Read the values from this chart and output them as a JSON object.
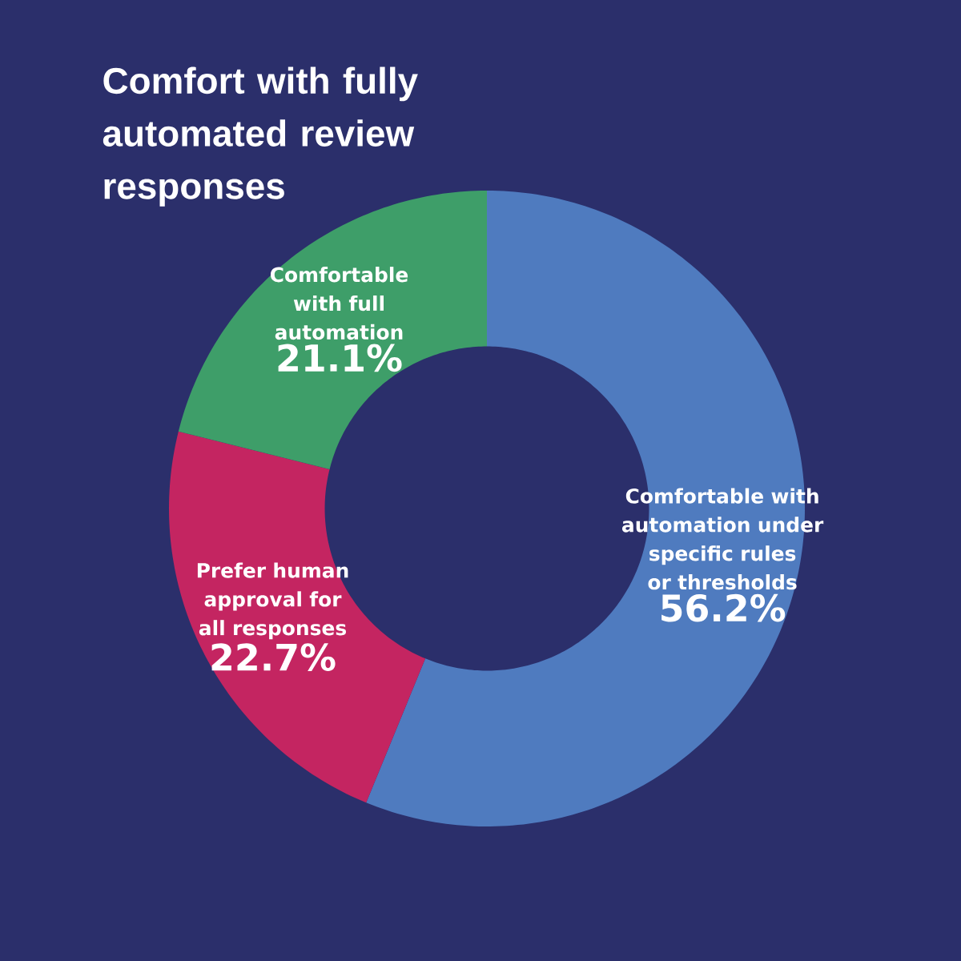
{
  "chart_data": {
    "type": "donut",
    "title": "Comfort with fully automated review responses",
    "categories": [
      "Comfortable with automation under specific rules or thresholds",
      "Prefer human approval for all responses",
      "Comfortable with full automation"
    ],
    "values": [
      56.2,
      22.7,
      21.1
    ],
    "colors": [
      "#4f7bbf",
      "#c42561",
      "#3e9e69"
    ],
    "value_labels": [
      "56.2%",
      "22.7%",
      "21.1%"
    ]
  }
}
